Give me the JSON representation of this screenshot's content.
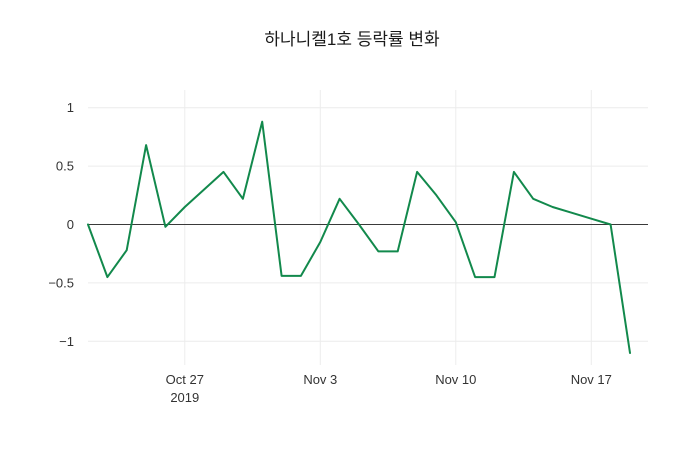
{
  "chart_data": {
    "type": "line",
    "title": "하나니켈1호 등락률 변화",
    "xlabel": "",
    "ylabel": "",
    "x": [
      "Oct 22",
      "Oct 23",
      "Oct 24",
      "Oct 25",
      "Oct 26",
      "Oct 27",
      "Oct 28",
      "Oct 29",
      "Oct 30",
      "Oct 31",
      "Nov 1",
      "Nov 2",
      "Nov 3",
      "Nov 4",
      "Nov 5",
      "Nov 6",
      "Nov 7",
      "Nov 8",
      "Nov 9",
      "Nov 10",
      "Nov 11",
      "Nov 12",
      "Nov 13",
      "Nov 14",
      "Nov 15",
      "Nov 16",
      "Nov 17",
      "Nov 18",
      "Nov 19"
    ],
    "values": [
      0.0,
      -0.45,
      -0.22,
      0.68,
      -0.02,
      0.15,
      0.3,
      0.45,
      0.22,
      0.88,
      -0.44,
      -0.44,
      -0.15,
      0.22,
      0.0,
      -0.23,
      -0.23,
      0.45,
      0.25,
      0.02,
      -0.45,
      -0.45,
      0.45,
      0.22,
      0.15,
      0.1,
      0.05,
      0.0,
      -1.1
    ],
    "ylim": [
      -1.16,
      1.1
    ],
    "yticks": [
      1,
      0.5,
      0,
      -0.5,
      -1
    ],
    "ytick_labels": [
      "1",
      "0.5",
      "0",
      "−0.5",
      "−1"
    ],
    "xticks": [
      {
        "index": 5,
        "label": "Oct 27",
        "sublabel": "2019"
      },
      {
        "index": 12,
        "label": "Nov 3"
      },
      {
        "index": 19,
        "label": "Nov 10"
      },
      {
        "index": 26,
        "label": "Nov 17"
      }
    ],
    "grid": true,
    "zero_line": true,
    "legend": "none",
    "line_color": "#12894c",
    "zero_line_color": "#3a3a3a",
    "grid_color": "#ececec",
    "background_color": "#ffffff"
  }
}
